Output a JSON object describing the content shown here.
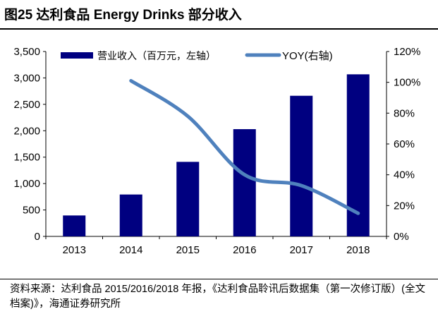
{
  "title": "图25 达利食品 Energy Drinks 部分收入",
  "source": "资料来源：达利食品 2015/2016/2018 年报，《达利食品聆讯后数据集（第一次修订版）(全文档案)》，海通证券研究所",
  "chart_data": {
    "type": "bar+line",
    "categories": [
      "2013",
      "2014",
      "2015",
      "2016",
      "2017",
      "2018"
    ],
    "series": [
      {
        "name": "营业收入（百万元，左轴）",
        "type": "bar",
        "axis": "left",
        "color": "#000080",
        "values": [
          396,
          793,
          1411,
          2030,
          2662,
          3068
        ]
      },
      {
        "name": "YOY(右轴)",
        "type": "line",
        "axis": "right",
        "color": "#4F81BD",
        "values": [
          null,
          101,
          78,
          40,
          33,
          15
        ]
      }
    ],
    "left_axis": {
      "ylim": [
        0,
        3500
      ],
      "ticks": [
        "0",
        "500",
        "1,000",
        "1,500",
        "2,000",
        "2,500",
        "3,000",
        "3,500"
      ]
    },
    "right_axis": {
      "ylim": [
        0,
        120
      ],
      "ticks": [
        "0%",
        "20%",
        "40%",
        "60%",
        "80%",
        "100%",
        "120%"
      ]
    },
    "grid": false,
    "legend": "top"
  }
}
